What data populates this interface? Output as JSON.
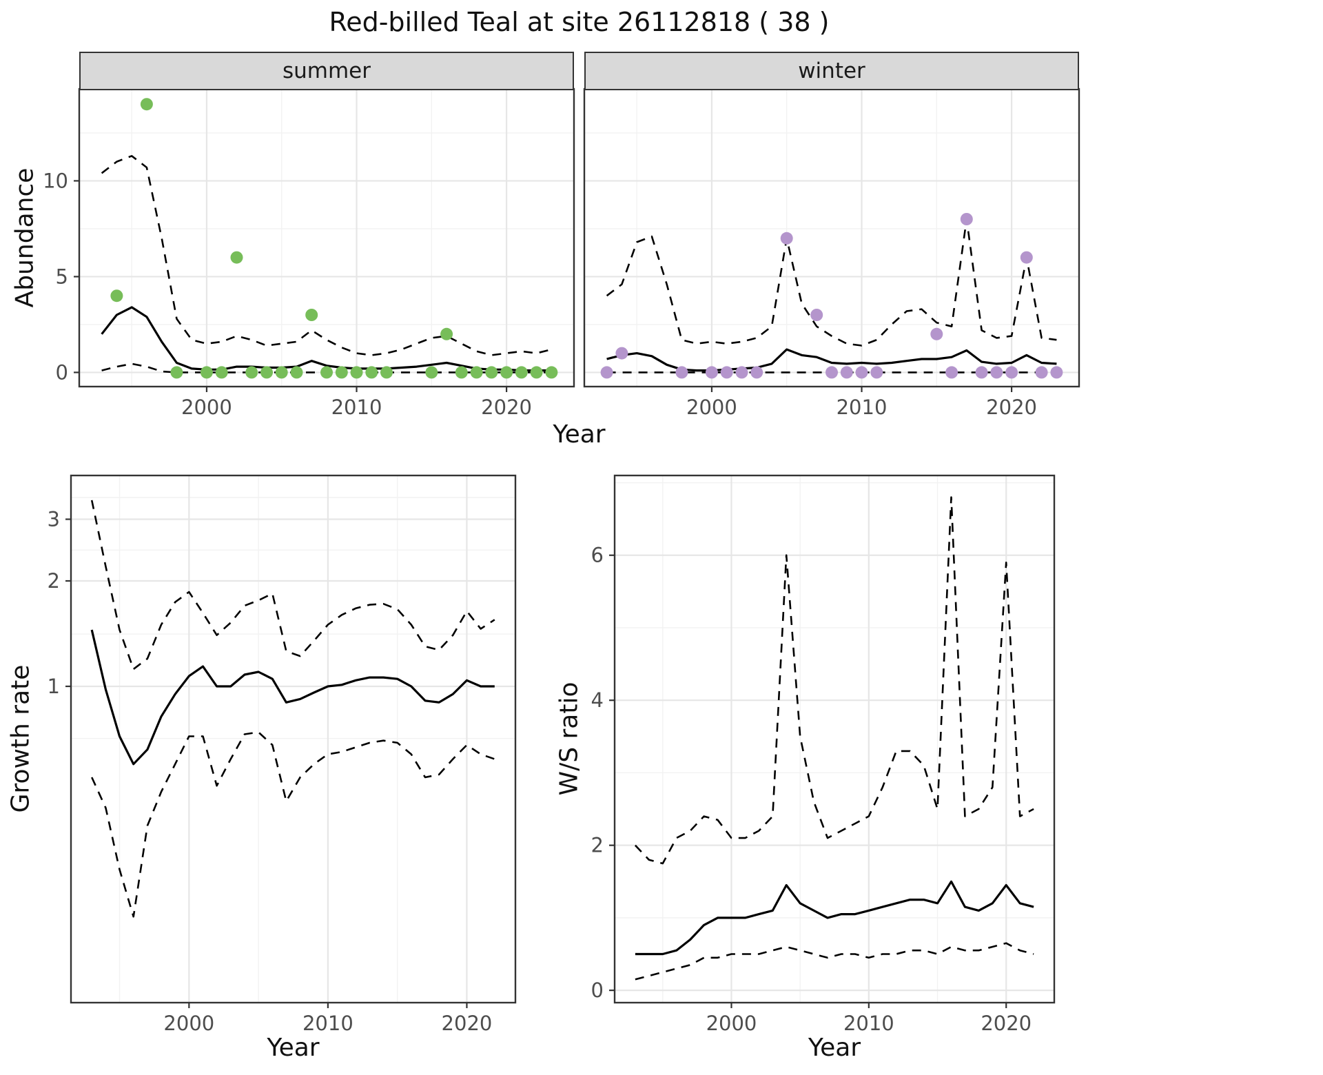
{
  "title": "Red-billed Teal at site 26112818 ( 38 )",
  "colors": {
    "summer_points": "#77bd59",
    "winter_points": "#b495cc",
    "line": "#000000",
    "strip_bg": "#d9d9d9",
    "panel_border": "#333333",
    "grid_major": "#e6e6e6",
    "grid_minor": "#f2f2f2",
    "tick_text": "#4d4d4d"
  },
  "chart_data": [
    {
      "id": "abundance-summer",
      "type": "line",
      "facet_label": "summer",
      "ylabel": "Abundance",
      "xlabel": "Year",
      "x_axis": {
        "lim": [
          1991.5,
          2024.5
        ],
        "ticks": [
          2000,
          2010,
          2020
        ],
        "minor": [
          1995,
          2005,
          2015
        ]
      },
      "y_axis": {
        "scale": "linear",
        "lim": [
          -0.74,
          14.8
        ],
        "ticks": [
          0,
          5,
          10
        ],
        "minor": [
          2.5,
          7.5,
          12.5
        ],
        "show_labels": true
      },
      "years": [
        1993,
        1994,
        1995,
        1996,
        1997,
        1998,
        1999,
        2000,
        2001,
        2002,
        2003,
        2004,
        2005,
        2006,
        2007,
        2008,
        2009,
        2010,
        2011,
        2012,
        2013,
        2014,
        2015,
        2016,
        2017,
        2018,
        2019,
        2020,
        2021,
        2022,
        2023
      ],
      "lines": [
        {
          "name": "fitted-median",
          "dash": false,
          "y": [
            2.0,
            3.0,
            3.4,
            2.9,
            1.6,
            0.5,
            0.2,
            0.15,
            0.15,
            0.3,
            0.3,
            0.25,
            0.25,
            0.3,
            0.6,
            0.35,
            0.25,
            0.2,
            0.2,
            0.2,
            0.25,
            0.3,
            0.4,
            0.5,
            0.35,
            0.2,
            0.15,
            0.15,
            0.1,
            0.1,
            0.1
          ]
        },
        {
          "name": "upper-credible",
          "dash": true,
          "y": [
            10.4,
            11.0,
            11.3,
            10.7,
            7.0,
            2.8,
            1.7,
            1.5,
            1.6,
            1.9,
            1.7,
            1.4,
            1.5,
            1.6,
            2.2,
            1.7,
            1.3,
            1.0,
            0.9,
            1.0,
            1.2,
            1.5,
            1.8,
            1.9,
            1.5,
            1.1,
            0.9,
            1.0,
            1.1,
            1.0,
            1.2
          ]
        },
        {
          "name": "lower-credible",
          "dash": true,
          "y": [
            0.1,
            0.3,
            0.45,
            0.3,
            0.05,
            0,
            0,
            0,
            0,
            0,
            0,
            0,
            0,
            0,
            0,
            0,
            0,
            0,
            0,
            0,
            0,
            0,
            0,
            0,
            0,
            0,
            0,
            0,
            0,
            0,
            0
          ]
        }
      ],
      "points": {
        "name": "observed-counts",
        "color": "#77bd59",
        "x": [
          1994,
          1996,
          1998,
          2000,
          2001,
          2002,
          2003,
          2004,
          2005,
          2006,
          2007,
          2008,
          2009,
          2010,
          2011,
          2012,
          2015,
          2016,
          2017,
          2018,
          2019,
          2020,
          2021,
          2022,
          2023
        ],
        "y": [
          4,
          14,
          0,
          0,
          0,
          6,
          0,
          0,
          0,
          0,
          3,
          0,
          0,
          0,
          0,
          0,
          0,
          2,
          0,
          0,
          0,
          0,
          0,
          0,
          0
        ]
      }
    },
    {
      "id": "abundance-winter",
      "type": "line",
      "facet_label": "winter",
      "ylabel": "Abundance",
      "xlabel": "Year",
      "x_axis": {
        "lim": [
          1991.5,
          2024.5
        ],
        "ticks": [
          2000,
          2010,
          2020
        ],
        "minor": [
          1995,
          2005,
          2015
        ]
      },
      "y_axis": {
        "scale": "linear",
        "lim": [
          -0.74,
          14.8
        ],
        "ticks": [
          0,
          5,
          10
        ],
        "minor": [
          2.5,
          7.5,
          12.5
        ],
        "show_labels": false
      },
      "years": [
        1993,
        1994,
        1995,
        1996,
        1997,
        1998,
        1999,
        2000,
        2001,
        2002,
        2003,
        2004,
        2005,
        2006,
        2007,
        2008,
        2009,
        2010,
        2011,
        2012,
        2013,
        2014,
        2015,
        2016,
        2017,
        2018,
        2019,
        2020,
        2021,
        2022,
        2023
      ],
      "lines": [
        {
          "name": "fitted-median",
          "dash": false,
          "y": [
            0.7,
            0.9,
            1.0,
            0.85,
            0.4,
            0.15,
            0.1,
            0.1,
            0.15,
            0.2,
            0.25,
            0.45,
            1.2,
            0.9,
            0.8,
            0.5,
            0.45,
            0.5,
            0.45,
            0.5,
            0.6,
            0.7,
            0.7,
            0.8,
            1.15,
            0.55,
            0.45,
            0.5,
            0.9,
            0.5,
            0.45
          ]
        },
        {
          "name": "upper-credible",
          "dash": true,
          "y": [
            4.0,
            4.6,
            6.8,
            7.1,
            4.6,
            1.7,
            1.5,
            1.6,
            1.5,
            1.6,
            1.8,
            2.4,
            7.0,
            3.6,
            2.4,
            1.9,
            1.5,
            1.4,
            1.7,
            2.5,
            3.2,
            3.3,
            2.6,
            2.4,
            8.0,
            2.2,
            1.8,
            1.9,
            6.0,
            1.8,
            1.7
          ]
        },
        {
          "name": "lower-credible",
          "dash": true,
          "y": [
            0,
            0,
            0,
            0,
            0,
            0,
            0,
            0,
            0,
            0,
            0,
            0,
            0,
            0,
            0,
            0,
            0,
            0,
            0,
            0,
            0,
            0,
            0,
            0,
            0,
            0,
            0,
            0,
            0,
            0,
            0
          ]
        }
      ],
      "points": {
        "name": "observed-counts",
        "color": "#b495cc",
        "x": [
          1993,
          1994,
          1998,
          2000,
          2001,
          2002,
          2003,
          2005,
          2007,
          2008,
          2009,
          2010,
          2011,
          2015,
          2016,
          2017,
          2018,
          2019,
          2020,
          2021,
          2022,
          2023
        ],
        "y": [
          0,
          1,
          0,
          0,
          0,
          0,
          0,
          7,
          3,
          0,
          0,
          0,
          0,
          2,
          0,
          8,
          0,
          0,
          0,
          6,
          0,
          0
        ]
      }
    },
    {
      "id": "growth-rate",
      "type": "line",
      "ylabel": "Growth rate",
      "xlabel": "Year",
      "x_axis": {
        "lim": [
          1991.5,
          2023.5
        ],
        "ticks": [
          2000,
          2010,
          2020
        ],
        "minor": [
          1995,
          2005,
          2015
        ]
      },
      "y_axis": {
        "scale": "log",
        "lim": [
          0.125,
          4.0
        ],
        "ticks": [
          1,
          2,
          3
        ],
        "minor": [
          0.71,
          1.41,
          2.45,
          3.46
        ],
        "show_labels": true
      },
      "years": [
        1993,
        1994,
        1995,
        1996,
        1997,
        1998,
        1999,
        2000,
        2001,
        2002,
        2003,
        2004,
        2005,
        2006,
        2007,
        2008,
        2009,
        2010,
        2011,
        2012,
        2013,
        2014,
        2015,
        2016,
        2017,
        2018,
        2019,
        2020,
        2021,
        2022
      ],
      "lines": [
        {
          "name": "fitted-median",
          "dash": false,
          "y": [
            1.45,
            0.98,
            0.72,
            0.6,
            0.66,
            0.82,
            0.95,
            1.07,
            1.14,
            1.0,
            1.0,
            1.08,
            1.1,
            1.05,
            0.9,
            0.92,
            0.96,
            1.0,
            1.01,
            1.04,
            1.06,
            1.06,
            1.05,
            1.0,
            0.91,
            0.9,
            0.95,
            1.04,
            1.0,
            1.0
          ]
        },
        {
          "name": "upper-credible",
          "dash": true,
          "y": [
            3.4,
            2.2,
            1.45,
            1.12,
            1.2,
            1.5,
            1.74,
            1.86,
            1.62,
            1.4,
            1.52,
            1.7,
            1.76,
            1.84,
            1.26,
            1.22,
            1.35,
            1.5,
            1.6,
            1.67,
            1.71,
            1.72,
            1.66,
            1.5,
            1.3,
            1.27,
            1.4,
            1.64,
            1.46,
            1.55
          ]
        },
        {
          "name": "lower-credible",
          "dash": true,
          "y": [
            0.55,
            0.45,
            0.3,
            0.22,
            0.4,
            0.5,
            0.6,
            0.72,
            0.72,
            0.52,
            0.62,
            0.73,
            0.74,
            0.68,
            0.47,
            0.55,
            0.6,
            0.64,
            0.65,
            0.67,
            0.69,
            0.7,
            0.69,
            0.64,
            0.55,
            0.56,
            0.62,
            0.68,
            0.64,
            0.62
          ]
        }
      ],
      "points": null
    },
    {
      "id": "ws-ratio",
      "type": "line",
      "ylabel": "W/S ratio",
      "xlabel": "Year",
      "x_axis": {
        "lim": [
          1991.5,
          2023.5
        ],
        "ticks": [
          2000,
          2010,
          2020
        ],
        "minor": [
          1995,
          2005,
          2015
        ]
      },
      "y_axis": {
        "scale": "linear",
        "lim": [
          -0.17,
          7.1
        ],
        "ticks": [
          0,
          2,
          4,
          6
        ],
        "minor": [
          1,
          3,
          5,
          7
        ],
        "show_labels": true
      },
      "years": [
        1993,
        1994,
        1995,
        1996,
        1997,
        1998,
        1999,
        2000,
        2001,
        2002,
        2003,
        2004,
        2005,
        2006,
        2007,
        2008,
        2009,
        2010,
        2011,
        2012,
        2013,
        2014,
        2015,
        2016,
        2017,
        2018,
        2019,
        2020,
        2021,
        2022
      ],
      "lines": [
        {
          "name": "fitted-median",
          "dash": false,
          "y": [
            0.5,
            0.5,
            0.5,
            0.55,
            0.7,
            0.9,
            1.0,
            1.0,
            1.0,
            1.05,
            1.1,
            1.45,
            1.2,
            1.1,
            1.0,
            1.05,
            1.05,
            1.1,
            1.15,
            1.2,
            1.25,
            1.25,
            1.2,
            1.5,
            1.15,
            1.1,
            1.2,
            1.45,
            1.2,
            1.15
          ]
        },
        {
          "name": "upper-credible",
          "dash": true,
          "y": [
            2.0,
            1.8,
            1.75,
            2.1,
            2.2,
            2.4,
            2.35,
            2.1,
            2.1,
            2.2,
            2.4,
            6.0,
            3.5,
            2.6,
            2.1,
            2.2,
            2.3,
            2.4,
            2.8,
            3.3,
            3.3,
            3.1,
            2.5,
            6.8,
            2.4,
            2.5,
            2.8,
            5.9,
            2.4,
            2.5
          ]
        },
        {
          "name": "lower-credible",
          "dash": true,
          "y": [
            0.15,
            0.2,
            0.25,
            0.3,
            0.35,
            0.45,
            0.45,
            0.5,
            0.5,
            0.5,
            0.55,
            0.6,
            0.55,
            0.5,
            0.45,
            0.5,
            0.5,
            0.45,
            0.5,
            0.5,
            0.55,
            0.55,
            0.5,
            0.6,
            0.55,
            0.55,
            0.6,
            0.65,
            0.55,
            0.5
          ]
        }
      ],
      "points": null
    }
  ]
}
